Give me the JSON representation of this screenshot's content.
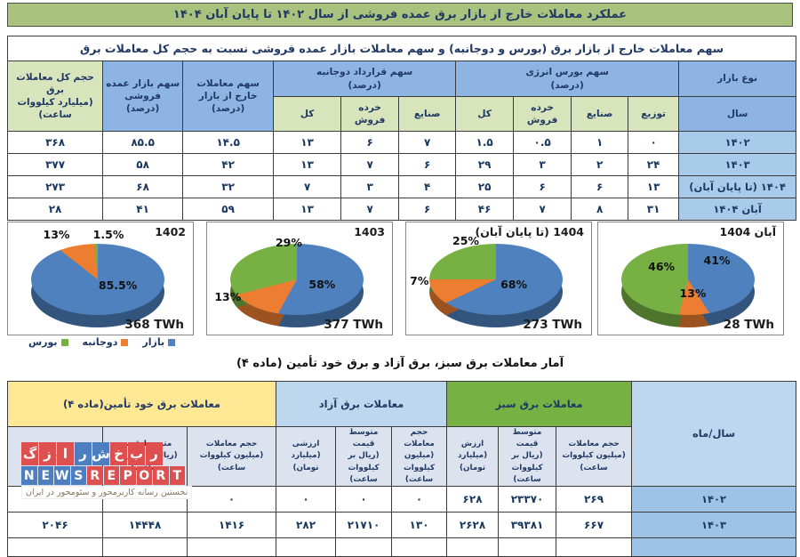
{
  "colors": {
    "title_bar_bg": "#A9C27E",
    "navy": "#1F3864",
    "data_text": "#17375E",
    "hdr_blue": "#8EB4E3",
    "hdr_green_light": "#D7E4BC",
    "year_cell_blue": "#A9CBEA",
    "t2_yellow": "#FFE894",
    "t2_blue": "#BDD7EE",
    "t2_green": "#76B243",
    "t2_sub_gray": "#DCE3EE",
    "t2_year_cell": "#9DC3E6",
    "pie_blue": "#4E81BD",
    "pie_orange": "#ED7D31",
    "pie_green": "#77B143",
    "wm_red": "#DE4F4F",
    "wm_blue": "#4D7EBF"
  },
  "page_title": "عملکرد معاملات خارج از بازار برق عمده فروشی از سال ۱۴۰۲ تا پایان آبان ۱۴۰۴",
  "section2_title": "آمار معاملات برق سبز، برق آزاد و برق خود تأمین (ماده ۴)",
  "table1": {
    "caption": "سهم معاملات خارج از بازار برق (بورس و دوجانبه) و سهم معاملات بازار عمده فروشی نسبت به حجم کل معاملات برق",
    "h": {
      "market_type": "نوع بازار",
      "bourse": "سهم بورس انرژی\n(درصد)",
      "bilateral": "سهم قرارداد دوجانبه\n(درصد)",
      "off_market": "سهم معاملات\nخارج از بازار\n(درصد)",
      "wholesale": "سهم بازار عمده فروشی\n(درصد)",
      "total_volume": "حجم کل معاملات برق\n(میلیارد کیلووات ساعت)"
    },
    "sub_headers": [
      "سال",
      "توزیع",
      "صنایع",
      "خرده فروش",
      "کل",
      "صنایع",
      "خرده فروش",
      "کل"
    ],
    "rows": [
      {
        "year": "۱۴۰۲",
        "values": [
          "۰",
          "۱",
          "۰.۵",
          "۱.۵",
          "۷",
          "۶",
          "۱۳",
          "۱۴.۵",
          "۸۵.۵",
          "۳۶۸"
        ]
      },
      {
        "year": "۱۴۰۳",
        "values": [
          "۲۴",
          "۲",
          "۳",
          "۲۹",
          "۶",
          "۷",
          "۱۳",
          "۴۲",
          "۵۸",
          "۳۷۷"
        ]
      },
      {
        "year": "۱۴۰۴ (تا پایان آبان)",
        "values": [
          "۱۳",
          "۶",
          "۶",
          "۲۵",
          "۴",
          "۳",
          "۷",
          "۳۲",
          "۶۸",
          "۲۷۳"
        ]
      },
      {
        "year": "آبان ۱۴۰۴",
        "values": [
          "۳۱",
          "۸",
          "۷",
          "۴۶",
          "۶",
          "۷",
          "۱۳",
          "۵۹",
          "۴۱",
          "۲۸"
        ]
      }
    ]
  },
  "chart_data": [
    {
      "type": "pie",
      "title": "1402",
      "total": "368 TWh",
      "slices": [
        {
          "name": "بازار",
          "value": 85.5,
          "color": "#4E81BD"
        },
        {
          "name": "دوجانبه",
          "value": 13,
          "color": "#ED7D31"
        },
        {
          "name": "بورس",
          "value": 1.5,
          "color": "#77B143"
        }
      ],
      "labels": [
        {
          "text": "13%",
          "x": 19,
          "y": 5
        },
        {
          "text": "1.5%",
          "x": 46,
          "y": 5
        },
        {
          "text": "85.5%",
          "x": 49,
          "y": 50
        }
      ]
    },
    {
      "type": "pie",
      "title": "1403",
      "total": "377 TWh",
      "slices": [
        {
          "name": "بازار",
          "value": 58,
          "color": "#4E81BD"
        },
        {
          "name": "دوجانبه",
          "value": 13,
          "color": "#ED7D31"
        },
        {
          "name": "بورس",
          "value": 29,
          "color": "#77B143"
        }
      ],
      "labels": [
        {
          "text": "29%",
          "x": 37,
          "y": 12
        },
        {
          "text": "13%",
          "x": 4,
          "y": 60
        },
        {
          "text": "58%",
          "x": 55,
          "y": 49
        }
      ]
    },
    {
      "type": "pie",
      "title": "1404 (تا پایان آبان)",
      "total": "273 TWh",
      "slices": [
        {
          "name": "بازار",
          "value": 68,
          "color": "#4E81BD"
        },
        {
          "name": "دوجانبه",
          "value": 7,
          "color": "#ED7D31"
        },
        {
          "name": "بورس",
          "value": 25,
          "color": "#77B143"
        }
      ],
      "labels": [
        {
          "text": "25%",
          "x": 25,
          "y": 10
        },
        {
          "text": "7%",
          "x": 2,
          "y": 46
        },
        {
          "text": "68%",
          "x": 51,
          "y": 49
        }
      ]
    },
    {
      "type": "pie",
      "title": "آبان 1404",
      "total": "28 TWh",
      "slices": [
        {
          "name": "بازار",
          "value": 41,
          "color": "#4E81BD"
        },
        {
          "name": "دوجانبه",
          "value": 13,
          "color": "#ED7D31"
        },
        {
          "name": "بورس",
          "value": 46,
          "color": "#77B143"
        }
      ],
      "labels": [
        {
          "text": "46%",
          "x": 27,
          "y": 33
        },
        {
          "text": "41%",
          "x": 57,
          "y": 28
        },
        {
          "text": "13%",
          "x": 44,
          "y": 57
        }
      ]
    }
  ],
  "legend": [
    {
      "label": "بورس",
      "color": "#77B143"
    },
    {
      "label": "دوجانبه",
      "color": "#ED7D31"
    },
    {
      "label": "بازار",
      "color": "#4E81BD"
    }
  ],
  "table2": {
    "h": {
      "year": "سال/ماه",
      "green": "معاملات برق سبز",
      "free": "معاملات برق آزاد",
      "self": "معاملات برق خود تأمین(ماده ۴)"
    },
    "sub_headers": [
      "حجم معاملات\n(میلیون کیلووات\nساعت)",
      "متوسط قیمت\n(ریال بر کیلووات\nساعت)",
      "ارزش\n(میلیارد تومان)",
      "حجم معاملات\n(میلیون کیلووات\nساعت)",
      "متوسط قیمت\n(ریال بر کیلووات\nساعت)",
      "ارزشی\n(میلیارد تومان)",
      "حجم معاملات\n(میلیون کیلووات ساعت)",
      "متوسط قیمت\n(ریال بر کیلووات ساعت)",
      "ارزشی"
    ],
    "rows": [
      {
        "year": "۱۴۰۲",
        "values": [
          "۲۶۹",
          "۲۳۳۷۰",
          "۶۲۸",
          "۰",
          "۰",
          "۰",
          "۰",
          "",
          ""
        ]
      },
      {
        "year": "۱۴۰۳",
        "values": [
          "۶۶۷",
          "۳۹۳۸۱",
          "۲۶۲۸",
          "۱۳۰",
          "۲۱۷۱۰",
          "۲۸۲",
          "۱۴۱۶",
          "۱۴۴۴۸",
          "۲۰۴۶"
        ]
      }
    ]
  },
  "watermark": {
    "fa_tiles": [
      {
        "ch": "گ",
        "c": "red"
      },
      {
        "ch": "ز",
        "c": "red"
      },
      {
        "ch": "ا",
        "c": "red"
      },
      {
        "ch": "ر",
        "c": "blue"
      },
      {
        "ch": "ش",
        "c": "blue"
      },
      {
        "ch": "خ",
        "c": "red"
      },
      {
        "ch": "ب",
        "c": "red"
      },
      {
        "ch": "ر",
        "c": "red"
      }
    ],
    "en_tiles": [
      {
        "ch": "N",
        "c": "blue"
      },
      {
        "ch": "E",
        "c": "blue"
      },
      {
        "ch": "W",
        "c": "blue"
      },
      {
        "ch": "S",
        "c": "blue"
      },
      {
        "ch": "R",
        "c": "red"
      },
      {
        "ch": "E",
        "c": "red"
      },
      {
        "ch": "P",
        "c": "red"
      },
      {
        "ch": "O",
        "c": "red"
      },
      {
        "ch": "R",
        "c": "red"
      },
      {
        "ch": "T",
        "c": "red"
      }
    ],
    "tagline": "نخستین رسانه کاربرمحور و سئومحور در ایران"
  }
}
